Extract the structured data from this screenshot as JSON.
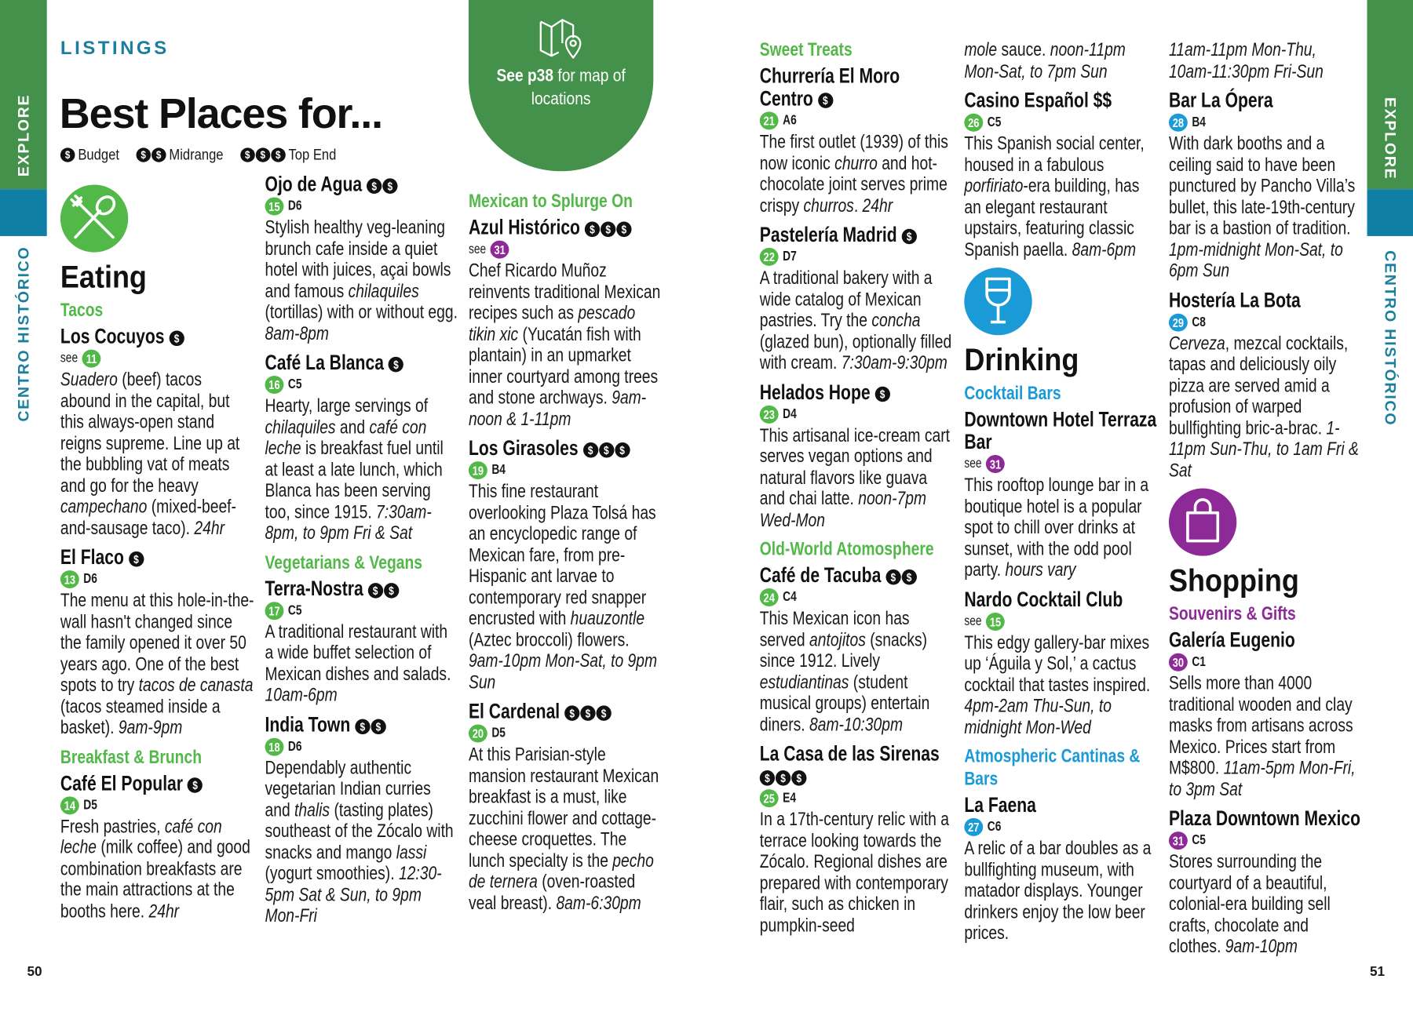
{
  "side_tabs": {
    "explore": "EXPLORE",
    "area": "CENTRO HISTÓRICO"
  },
  "header": {
    "kicker": "LISTINGS",
    "title": "Best Places for...",
    "legend": [
      {
        "coins": 1,
        "label": "Budget"
      },
      {
        "coins": 2,
        "label": "Midrange"
      },
      {
        "coins": 3,
        "label": "Top End"
      }
    ]
  },
  "map_badge": {
    "icon": "map-pin-icon",
    "bold": "See p38",
    "rest": " for map of locations"
  },
  "page_numbers": {
    "left": "50",
    "right": "51"
  },
  "colors": {
    "eating": "#52b848",
    "drinking": "#1a9ad6",
    "shopping": "#8e2a97",
    "strip_green": "#43914a",
    "strip_blue": "#0f7fa5",
    "kicker": "#1a7f9c"
  },
  "coin_symbol": "$",
  "see_label": "see",
  "columns": [
    {
      "blocks": [
        {
          "type": "section",
          "cat": "eating",
          "icon": "fork-spoon-icon",
          "title": "Eating"
        },
        {
          "type": "sub",
          "cat": "eating",
          "text": "Tacos"
        },
        {
          "type": "entry",
          "name": "Los Cocuyos",
          "price": 1,
          "see": true,
          "pin": "11",
          "pin_cat": "eating",
          "desc": [
            {
              "i": "Suadero"
            },
            " (beef) tacos abound in the capital, but this always-open stand reigns supreme. Line up at the bubbling vat of meats and go for the heavy ",
            {
              "i": "campechano"
            },
            " (mixed-beef-and-sausage taco). ",
            {
              "i": "24hr"
            }
          ]
        },
        {
          "type": "entry",
          "name": "El Flaco",
          "price": 1,
          "pin": "13",
          "grid": "D6",
          "pin_cat": "eating",
          "desc": [
            "The menu at this hole-in-the-wall hasn't changed since the family opened it over 50 years ago. One of the best spots to try ",
            {
              "i": "tacos de canasta"
            },
            " (tacos steamed inside a basket). ",
            {
              "i": "9am-9pm"
            }
          ]
        },
        {
          "type": "sub",
          "cat": "eating",
          "text": "Breakfast & Brunch"
        },
        {
          "type": "entry",
          "name": "Café El Popular",
          "price": 1,
          "pin": "14",
          "grid": "D5",
          "pin_cat": "eating",
          "desc": [
            "Fresh pastries, ",
            {
              "i": "café con leche"
            },
            " (milk coffee) and good combination breakfasts are the main attractions at the booths here. ",
            {
              "i": "24hr"
            }
          ]
        }
      ]
    },
    {
      "blocks": [
        {
          "type": "entry",
          "name": "Ojo de Agua",
          "price": 2,
          "pin": "15",
          "grid": "D6",
          "pin_cat": "eating",
          "desc": [
            "Stylish healthy veg-leaning brunch cafe inside a quiet hotel with juices, açai bowls and famous ",
            {
              "i": "chilaquiles"
            },
            " (tortillas) with or without egg. ",
            {
              "i": "8am-8pm"
            }
          ]
        },
        {
          "type": "entry",
          "name": "Café La Blanca",
          "price": 1,
          "pin": "16",
          "grid": "C5",
          "pin_cat": "eating",
          "desc": [
            "Hearty, large servings of ",
            {
              "i": "chilaquiles"
            },
            " and ",
            {
              "i": "café con leche"
            },
            " is breakfast fuel until at least a late lunch, which Blanca has been serving too, since 1915. ",
            {
              "i": "7:30am-8pm, to 9pm Fri & Sat"
            }
          ]
        },
        {
          "type": "sub",
          "cat": "eating",
          "text": "Vegetarians & Vegans"
        },
        {
          "type": "entry",
          "name": "Terra-Nostra",
          "price": 2,
          "pin": "17",
          "grid": "C5",
          "pin_cat": "eating",
          "desc": [
            "A traditional restaurant with a wide buffet selection of Mexican dishes and salads. ",
            {
              "i": "10am-6pm"
            }
          ]
        },
        {
          "type": "entry",
          "name": "India Town",
          "price": 2,
          "pin": "18",
          "grid": "D6",
          "pin_cat": "eating",
          "desc": [
            "Dependably authentic vegetarian Indian curries and ",
            {
              "i": "thalis"
            },
            " (tasting plates) southeast of the Zócalo with snacks and mango ",
            {
              "i": "lassi"
            },
            " (yogurt smoothies). ",
            {
              "i": "12:30-5pm Sat & Sun, to 9pm Mon-Fri"
            }
          ]
        }
      ]
    },
    {
      "blocks": [
        {
          "type": "sub",
          "cat": "eating",
          "text": "Mexican to Splurge On"
        },
        {
          "type": "entry",
          "name": "Azul Histórico",
          "price": 3,
          "see": true,
          "pin": "31",
          "pin_cat": "shopping",
          "desc": [
            "Chef Ricardo Muñoz reinvents traditional Mexican recipes such as ",
            {
              "i": "pescado tikin xic"
            },
            " (Yucatán fish with plantain) in an upmarket inner courtyard among trees and stone archways. ",
            {
              "i": "9am-noon & 1-11pm"
            }
          ]
        },
        {
          "type": "entry",
          "name": "Los Girasoles",
          "price": 3,
          "pin": "19",
          "grid": "B4",
          "pin_cat": "eating",
          "desc": [
            "This fine restaurant overlooking Plaza Tolsá has an encyclopedic range of Mexican fare, from pre-Hispanic ant larvae to contemporary red snapper encrusted with ",
            {
              "i": "huauzontle"
            },
            " (Aztec broccoli) flowers. ",
            {
              "i": "9am-10pm Mon-Sat, to 9pm Sun"
            }
          ]
        },
        {
          "type": "entry",
          "name": "El Cardenal",
          "price": 3,
          "pin": "20",
          "grid": "D5",
          "pin_cat": "eating",
          "desc": [
            "At this Parisian-style mansion restaurant Mexican breakfast is a must, like zucchini flower and cottage-cheese croquettes. The lunch specialty is the ",
            {
              "i": "pecho de ternera"
            },
            " (oven-roasted veal breast). ",
            {
              "i": "8am-6:30pm"
            }
          ]
        }
      ]
    },
    {
      "blocks": [
        {
          "type": "sub",
          "cat": "eating",
          "text": "Sweet Treats"
        },
        {
          "type": "entry",
          "name": "Churrería El Moro Centro",
          "price": 1,
          "pin": "21",
          "grid": "A6",
          "pin_cat": "eating",
          "desc": [
            "The first outlet (1939) of this now iconic ",
            {
              "i": "churro"
            },
            " and hot-chocolate joint serves prime crispy ",
            {
              "i": "churros"
            },
            ". ",
            {
              "i": "24hr"
            }
          ]
        },
        {
          "type": "entry",
          "name": "Pastelería Madrid",
          "price": 1,
          "pin": "22",
          "grid": "D7",
          "pin_cat": "eating",
          "desc": [
            "A traditional bakery with a wide catalog of Mexican pastries. Try the ",
            {
              "i": "concha"
            },
            " (glazed bun), optionally filled with cream. ",
            {
              "i": "7:30am-9:30pm"
            }
          ]
        },
        {
          "type": "entry",
          "name": "Helados Hope",
          "price": 1,
          "pin": "23",
          "grid": "D4",
          "pin_cat": "eating",
          "desc": [
            "This artisanal ice-cream cart serves vegan options and natural flavors like guava and chai latte. ",
            {
              "i": "noon-7pm Wed-Mon"
            }
          ]
        },
        {
          "type": "sub",
          "cat": "eating",
          "text": "Old-World Atomosphere"
        },
        {
          "type": "entry",
          "name": "Café de Tacuba",
          "price": 2,
          "pin": "24",
          "grid": "C4",
          "pin_cat": "eating",
          "desc": [
            "This Mexican icon has served ",
            {
              "i": "antojitos"
            },
            " (snacks) since 1912. Lively ",
            {
              "i": "estudiantinas"
            },
            " (student musical groups) entertain diners. ",
            {
              "i": "8am-10:30pm"
            }
          ]
        },
        {
          "type": "entry",
          "name": "La Casa de las Sirenas",
          "price": 3,
          "pin": "25",
          "grid": "E4",
          "pin_cat": "eating",
          "desc": [
            "In a 17th-century relic with a terrace looking towards the Zócalo. Regional dishes are prepared with contemporary flair, such as chicken in pumpkin-seed"
          ]
        }
      ]
    },
    {
      "blocks": [
        {
          "type": "cont",
          "desc": [
            {
              "i": "mole"
            },
            " sauce. ",
            {
              "i": "noon-11pm Mon-Sat, to 7pm Sun"
            }
          ]
        },
        {
          "type": "entry",
          "name": "Casino Español $$",
          "pin": "26",
          "grid": "C5",
          "pin_cat": "eating",
          "desc": [
            "This Spanish social center, housed in a fabulous ",
            {
              "i": "porfiriato"
            },
            "-era building, has an elegant restaurant upstairs, featuring classic Spanish paella. ",
            {
              "i": "8am-6pm"
            }
          ]
        },
        {
          "type": "section",
          "cat": "drinking",
          "icon": "wine-glass-icon",
          "title": "Drinking"
        },
        {
          "type": "sub",
          "cat": "drinking",
          "text": "Cocktail Bars"
        },
        {
          "type": "entry",
          "name": "Downtown Hotel Terraza Bar",
          "see": true,
          "pin": "31",
          "pin_cat": "shopping",
          "desc": [
            "This rooftop lounge bar in a boutique hotel is a popular spot to chill over drinks at sunset, with the odd pool party. ",
            {
              "i": "hours vary"
            }
          ]
        },
        {
          "type": "entry",
          "name": "Nardo Cocktail Club",
          "see": true,
          "pin": "15",
          "pin_cat": "eating",
          "desc": [
            "This edgy gallery-bar mixes up ‘Águila y Sol,’ a cactus cocktail that tastes inspired. ",
            {
              "i": "4pm-2am Thu-Sun, to midnight Mon-Wed"
            }
          ]
        },
        {
          "type": "sub",
          "cat": "drinking",
          "text": "Atmospheric Cantinas & Bars"
        },
        {
          "type": "entry",
          "name": "La Faena",
          "pin": "27",
          "grid": "C6",
          "pin_cat": "drinking",
          "desc": [
            "A relic of a bar doubles as a bullfighting museum, with matador displays. Younger drinkers enjoy the low beer prices."
          ]
        }
      ]
    },
    {
      "blocks": [
        {
          "type": "cont",
          "desc": [
            {
              "i": "11am-11pm Mon-Thu, 10am-11:30pm Fri-Sun"
            }
          ]
        },
        {
          "type": "entry",
          "name": "Bar La Ópera",
          "pin": "28",
          "grid": "B4",
          "pin_cat": "drinking",
          "desc": [
            "With dark booths and a ceiling said to have been punctured by Pancho Villa’s bullet, this late-19th-century bar is a bastion of tradition. ",
            {
              "i": "1pm-midnight Mon-Sat, to 6pm Sun"
            }
          ]
        },
        {
          "type": "entry",
          "name": "Hostería La Bota",
          "pin": "29",
          "grid": "C8",
          "pin_cat": "drinking",
          "desc": [
            {
              "i": "Cerveza"
            },
            ", mezcal cocktails, tapas and deliciously oily pizza are served amid a profusion of warped bullfighting bric-a-brac. ",
            {
              "i": "1-11pm Sun-Thu, to 1am Fri & Sat"
            }
          ]
        },
        {
          "type": "section",
          "cat": "shopping",
          "icon": "shopping-bag-icon",
          "title": "Shopping"
        },
        {
          "type": "sub",
          "cat": "shopping",
          "text": "Souvenirs & Gifts"
        },
        {
          "type": "entry",
          "name": "Galería Eugenio",
          "pin": "30",
          "grid": "C1",
          "pin_cat": "shopping",
          "desc": [
            "Sells more than 4000 traditional wooden and clay masks from artisans across Mexico. Prices start from M$800. ",
            {
              "i": "11am-5pm Mon-Fri, to 3pm Sat"
            }
          ]
        },
        {
          "type": "entry",
          "name": "Plaza Downtown Mexico",
          "pin": "31",
          "grid": "C5",
          "pin_cat": "shopping",
          "desc": [
            "Stores surrounding the courtyard of a beautiful, colonial-era building sell crafts, chocolate and clothes. ",
            {
              "i": "9am-10pm"
            }
          ]
        }
      ]
    }
  ]
}
